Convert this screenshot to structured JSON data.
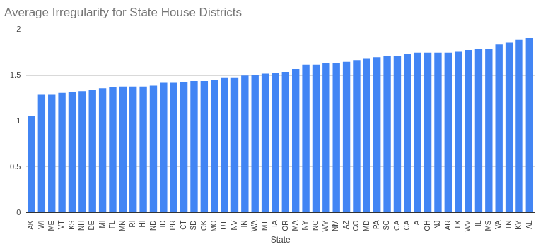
{
  "chart_data": {
    "type": "bar",
    "title": "Average Irregularity for State House Districts",
    "xlabel": "State",
    "categories": [
      "AK",
      "WI",
      "ME",
      "VT",
      "KS",
      "NH",
      "DE",
      "MI",
      "FL",
      "MN",
      "RI",
      "HI",
      "ND",
      "ID",
      "PR",
      "CT",
      "SD",
      "OK",
      "MO",
      "UT",
      "NV",
      "IN",
      "WA",
      "MT",
      "IA",
      "OR",
      "MA",
      "NY",
      "NC",
      "WY",
      "NM",
      "AZ",
      "CO",
      "MD",
      "PA",
      "SC",
      "GA",
      "CA",
      "LA",
      "OH",
      "NJ",
      "AR",
      "TX",
      "WV",
      "IL",
      "MS",
      "VA",
      "TN",
      "KY",
      "AL"
    ],
    "values": [
      1.06,
      1.29,
      1.29,
      1.31,
      1.32,
      1.33,
      1.34,
      1.36,
      1.37,
      1.38,
      1.38,
      1.38,
      1.39,
      1.42,
      1.42,
      1.43,
      1.44,
      1.44,
      1.45,
      1.48,
      1.48,
      1.5,
      1.51,
      1.52,
      1.53,
      1.54,
      1.57,
      1.62,
      1.62,
      1.64,
      1.64,
      1.65,
      1.67,
      1.69,
      1.7,
      1.71,
      1.71,
      1.74,
      1.75,
      1.75,
      1.75,
      1.75,
      1.76,
      1.78,
      1.79,
      1.79,
      1.84,
      1.86,
      1.89,
      1.91
    ],
    "color": "#4285f4",
    "ylim": [
      0,
      2
    ],
    "yticks": [
      0,
      0.5,
      1,
      1.5,
      2
    ],
    "grid": true
  }
}
